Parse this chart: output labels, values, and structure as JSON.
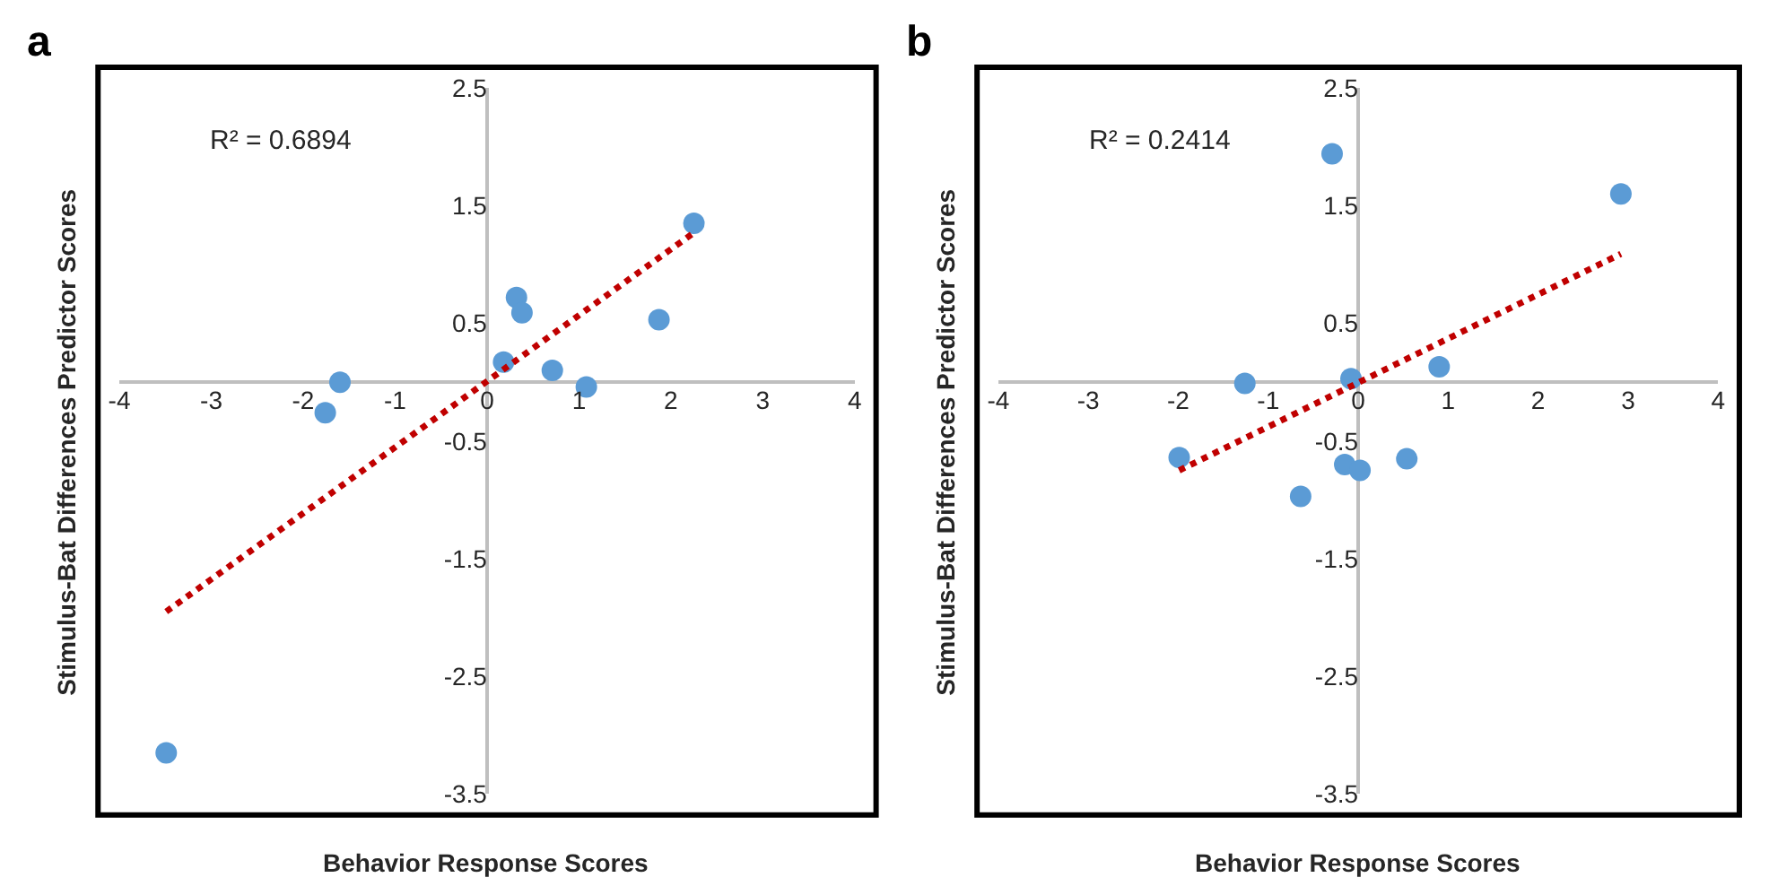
{
  "chart_data": [
    {
      "type": "scatter",
      "title": "a",
      "xlabel": "Behavior Response Scores",
      "ylabel": "Stimulus-Bat Differences Predictor Scores",
      "annotations": [
        "R² = 0.6894"
      ],
      "xlim": [
        -4,
        4
      ],
      "xticks": [
        -4,
        -3,
        -2,
        -1,
        0,
        1,
        2,
        3,
        4
      ],
      "ylim": [
        -3.5,
        2.5
      ],
      "yticks": [
        -3.5,
        -2.5,
        -1.5,
        -0.5,
        0.5,
        1.5,
        2.5
      ],
      "grid": false,
      "series": [
        {
          "marker": "circle",
          "color": "#5b9bd5",
          "x": [
            -3.49,
            -1.76,
            -1.6,
            0.18,
            0.32,
            0.38,
            0.71,
            1.08,
            1.87,
            2.25
          ],
          "values": [
            -3.15,
            -0.26,
            0.0,
            0.17,
            0.72,
            0.59,
            0.1,
            -0.04,
            0.53,
            1.35
          ]
        },
        {
          "type": "line",
          "marker": "none",
          "color": "#c00000",
          "line_style": "dotted",
          "x": [
            -3.49,
            2.25
          ],
          "values": [
            -1.95,
            1.27
          ]
        }
      ]
    },
    {
      "type": "scatter",
      "title": "b",
      "xlabel": "Behavior Response Scores",
      "ylabel": "Stimulus-Bat Differences Predictor Scores",
      "annotations": [
        "R² = 0.2414"
      ],
      "xlim": [
        -4,
        4
      ],
      "xticks": [
        -4,
        -3,
        -2,
        -1,
        0,
        1,
        2,
        3,
        4
      ],
      "ylim": [
        -3.5,
        2.5
      ],
      "yticks": [
        -3.5,
        -2.5,
        -1.5,
        -0.5,
        0.5,
        1.5,
        2.5
      ],
      "grid": false,
      "series": [
        {
          "marker": "circle",
          "color": "#5b9bd5",
          "x": [
            -1.99,
            -1.26,
            -0.64,
            -0.29,
            -0.15,
            -0.08,
            0.02,
            0.54,
            0.9,
            2.92
          ],
          "values": [
            -0.64,
            -0.01,
            -0.97,
            1.94,
            -0.7,
            0.03,
            -0.75,
            -0.65,
            0.13,
            1.6
          ]
        },
        {
          "type": "line",
          "marker": "none",
          "color": "#c00000",
          "line_style": "dotted",
          "x": [
            -1.99,
            2.92
          ],
          "values": [
            -0.75,
            1.09
          ]
        }
      ]
    }
  ]
}
